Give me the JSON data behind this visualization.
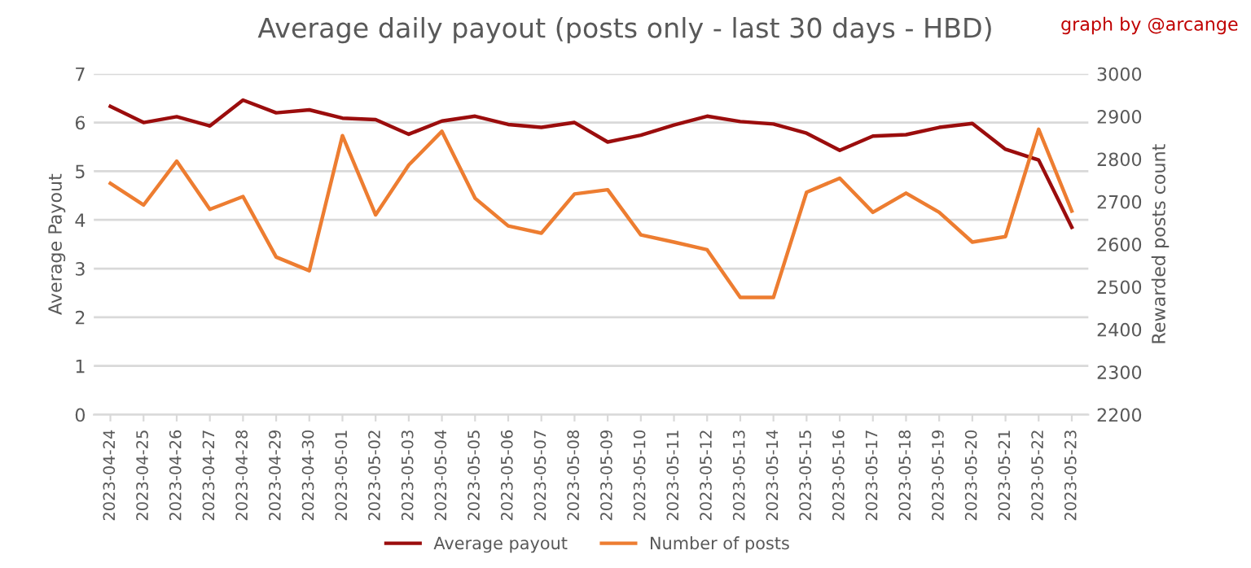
{
  "chart_data": {
    "type": "line",
    "title": "Average daily payout (posts only - last 30 days - HBD)",
    "ylabel": "Average Payout",
    "y2label": "Rewarded posts count",
    "annotations": [
      "graph by @arcange"
    ],
    "categories": [
      "2023-04-24",
      "2023-04-25",
      "2023-04-26",
      "2023-04-27",
      "2023-04-28",
      "2023-04-29",
      "2023-04-30",
      "2023-05-01",
      "2023-05-02",
      "2023-05-03",
      "2023-05-04",
      "2023-05-05",
      "2023-05-06",
      "2023-05-07",
      "2023-05-08",
      "2023-05-09",
      "2023-05-10",
      "2023-05-11",
      "2023-05-12",
      "2023-05-13",
      "2023-05-14",
      "2023-05-15",
      "2023-05-16",
      "2023-05-17",
      "2023-05-18",
      "2023-05-19",
      "2023-05-20",
      "2023-05-21",
      "2023-05-22",
      "2023-05-23"
    ],
    "series": [
      {
        "name": "Average payout",
        "color": "#9b0d0d",
        "values": [
          6.33,
          6.0,
          6.12,
          5.93,
          6.46,
          6.2,
          6.26,
          6.09,
          6.06,
          5.76,
          6.03,
          6.13,
          5.96,
          5.9,
          6.0,
          5.6,
          5.74,
          5.95,
          6.13,
          6.02,
          5.97,
          5.78,
          5.43,
          5.72,
          5.75,
          5.9,
          5.98,
          5.45,
          5.23,
          3.85
        ]
      },
      {
        "name": "Number of posts",
        "color": "#ed7d31",
        "axis": "y2",
        "values": [
          2743,
          2692,
          2795,
          2682,
          2712,
          2570,
          2538,
          2855,
          2669,
          2786,
          2865,
          2708,
          2643,
          2626,
          2718,
          2728,
          2622,
          2605,
          2587,
          2475,
          2475,
          2722,
          2755,
          2675,
          2720,
          2675,
          2605,
          2618,
          2870,
          2678
        ]
      }
    ],
    "ylim": [
      0,
      7
    ],
    "yticks": [
      0,
      1,
      2,
      3,
      4,
      5,
      6,
      7
    ],
    "y2lim": [
      2200,
      3000
    ],
    "y2ticks": [
      2200,
      2300,
      2400,
      2500,
      2600,
      2700,
      2800,
      2900,
      3000
    ],
    "grid": "y",
    "legend": "bottom",
    "marker": "none",
    "line_style": "solid"
  }
}
